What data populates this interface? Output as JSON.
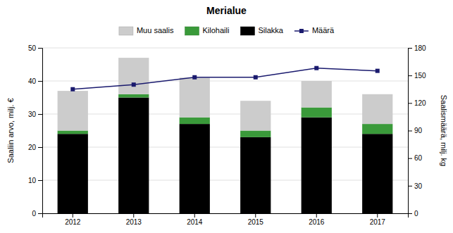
{
  "chart_data": {
    "type": "bar",
    "title": "Merialue",
    "categories": [
      "2012",
      "2013",
      "2014",
      "2015",
      "2016",
      "2017"
    ],
    "series": [
      {
        "name": "Silakka",
        "color": "#000000",
        "values": [
          24,
          35,
          27,
          23,
          29,
          24
        ]
      },
      {
        "name": "Kilohaili",
        "color": "#3a9a3a",
        "values": [
          1,
          1,
          2,
          2,
          3,
          3
        ]
      },
      {
        "name": "Muu saalis",
        "color": "#cccccc",
        "values": [
          12,
          11,
          12,
          9,
          8,
          9
        ]
      },
      {
        "name": "Määrä",
        "color": "#1a1a6e",
        "values": [
          135,
          140,
          148,
          148,
          158,
          155
        ],
        "type": "line",
        "axis": "y2",
        "marker": "square"
      }
    ],
    "stacked": true,
    "ylabel": "Saaliin arvo, milj. €",
    "y2label": "Saalismäärä, milj. kg",
    "ylim": [
      0,
      50
    ],
    "yticks": [
      0,
      10,
      20,
      30,
      40,
      50
    ],
    "y2lim": [
      0,
      180
    ],
    "y2ticks": [
      0,
      30,
      60,
      90,
      120,
      150,
      180
    ],
    "grid": true,
    "legend": "top"
  }
}
